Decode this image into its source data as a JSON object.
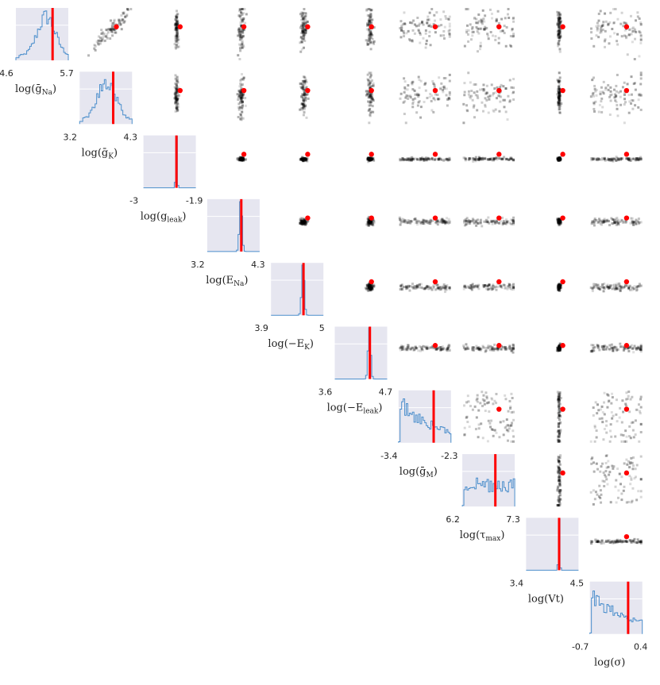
{
  "chart_data": {
    "type": "pairplot",
    "parameters": [
      {
        "label": "log(ḡ",
        "sub": "Na",
        "tail": ")",
        "ticks": [
          "4.6",
          "5.7"
        ],
        "truth_frac": 0.7,
        "marginal": "wide"
      },
      {
        "label": "log(ḡ",
        "sub": "K",
        "tail": ")",
        "ticks": [
          "3.2",
          "4.3"
        ],
        "truth_frac": 0.64,
        "marginal": "wide"
      },
      {
        "label": "log(g",
        "sub": "leak",
        "tail": ")",
        "ticks": [
          "-3",
          "-1.9"
        ],
        "truth_frac": 0.63,
        "marginal": "narrow"
      },
      {
        "label": "log(E",
        "sub": "Na",
        "tail": ")",
        "ticks": [
          "3.2",
          "4.3"
        ],
        "truth_frac": 0.65,
        "marginal": "peak"
      },
      {
        "label": "log(E",
        "sub": "K",
        "tail": ")",
        "prefix_minus": true,
        "ticks": [
          "3.9",
          "5"
        ],
        "truth_frac": 0.62,
        "marginal": "peak"
      },
      {
        "label": "log(E",
        "sub": "leak",
        "tail": ")",
        "prefix_minus": true,
        "ticks": [
          "3.6",
          "4.7"
        ],
        "truth_frac": 0.67,
        "marginal": "peak"
      },
      {
        "label": "log(ḡ",
        "sub": "M",
        "tail": ")",
        "ticks": [
          "-3.4",
          "-2.3"
        ],
        "truth_frac": 0.67,
        "marginal": "decay"
      },
      {
        "label": "log(τ",
        "sub": "max",
        "tail": ")",
        "ticks": [
          "6.2",
          "7.3"
        ],
        "truth_frac": 0.63,
        "marginal": "flat"
      },
      {
        "label": "log(Vt",
        "sub": "",
        "tail": ")",
        "ticks": [
          "3.4",
          "4.5"
        ],
        "truth_frac": 0.63,
        "marginal": "narrow"
      },
      {
        "label": "log(σ",
        "sub": "",
        "tail": ")",
        "ticks": [
          "-0.7",
          "0.4"
        ],
        "truth_frac": 0.73,
        "marginal": "decay"
      }
    ],
    "ground_truth_color": "#ff0000",
    "histogram_color": "#4c8fcc",
    "panel_background": "#e6e6f0",
    "scatter_color": "#000000"
  }
}
